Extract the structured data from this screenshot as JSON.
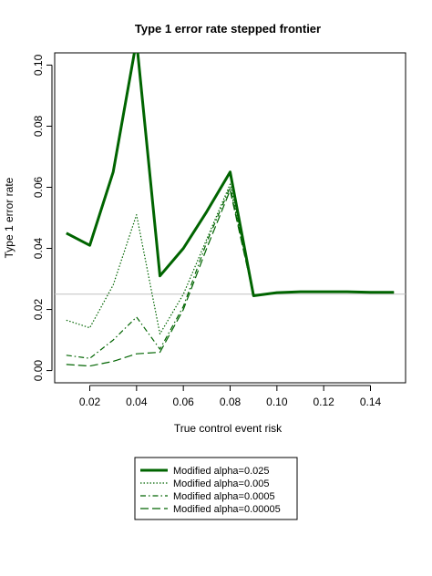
{
  "chart_data": {
    "type": "line",
    "title": "Type 1 error rate stepped frontier",
    "xlabel": "True control event risk",
    "ylabel": "Type 1 error rate",
    "xlim": [
      0.005,
      0.155
    ],
    "ylim": [
      -0.004,
      0.104
    ],
    "x_ticks": [
      0.02,
      0.04,
      0.06,
      0.08,
      0.1,
      0.12,
      0.14
    ],
    "x_tick_labels": [
      "0.02",
      "0.04",
      "0.06",
      "0.08",
      "0.10",
      "0.12",
      "0.14"
    ],
    "y_ticks": [
      0.0,
      0.02,
      0.04,
      0.06,
      0.08,
      0.1
    ],
    "y_tick_labels": [
      "0.00",
      "0.02",
      "0.04",
      "0.06",
      "0.08",
      "0.10"
    ],
    "reference_line": {
      "y": 0.025,
      "color": "#c0c0c0"
    },
    "x": [
      0.01,
      0.02,
      0.03,
      0.04,
      0.05,
      0.06,
      0.07,
      0.08,
      0.09,
      0.1,
      0.11,
      0.12,
      0.13,
      0.14,
      0.15
    ],
    "series": [
      {
        "name": "Modified alpha=0.025",
        "style": "solid-thick",
        "values": [
          0.045,
          0.041,
          0.065,
          0.108,
          0.031,
          0.04,
          0.052,
          0.065,
          0.0245,
          0.0255,
          0.0258,
          0.0258,
          0.0258,
          0.0256,
          0.0256
        ]
      },
      {
        "name": "Modified alpha=0.005",
        "style": "dotted",
        "values": [
          0.0165,
          0.014,
          0.028,
          0.051,
          0.012,
          0.025,
          0.043,
          0.061,
          0.0245,
          0.0255,
          0.0258,
          0.0258,
          0.0258,
          0.0256,
          0.0256
        ]
      },
      {
        "name": "Modified alpha=0.0005",
        "style": "dash-dot",
        "values": [
          0.005,
          0.004,
          0.01,
          0.0175,
          0.007,
          0.021,
          0.042,
          0.06,
          0.0245,
          0.0255,
          0.0258,
          0.0258,
          0.0258,
          0.0256,
          0.0256
        ]
      },
      {
        "name": "Modified alpha=0.00005",
        "style": "long-dash",
        "values": [
          0.002,
          0.0015,
          0.003,
          0.0055,
          0.006,
          0.02,
          0.04,
          0.059,
          0.0245,
          0.0255,
          0.0258,
          0.0258,
          0.0258,
          0.0256,
          0.0256
        ]
      }
    ],
    "series_color": "#006400",
    "legend_position": "bottom-center",
    "grid": false
  }
}
